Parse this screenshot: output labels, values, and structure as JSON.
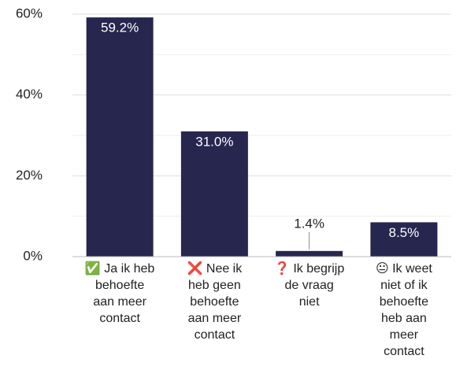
{
  "chart_data": {
    "type": "bar",
    "categories": [
      "✅ Ja ik heb behoefte aan meer contact",
      "❌ Nee ik heb geen behoefte aan meer contact",
      "❓ Ik begrijp de vraag niet",
      "😐 Ik weet niet of ik behoefte heb aan meer contact"
    ],
    "values": [
      59.2,
      31.0,
      1.4,
      8.5
    ],
    "value_labels": [
      "59.2%",
      "31.0%",
      "1.4%",
      "8.5%"
    ],
    "color": "#27264f",
    "ylim": [
      0,
      60
    ],
    "yticks": [
      {
        "value": 0,
        "label": "0%"
      },
      {
        "value": 20,
        "label": "20%"
      },
      {
        "value": 40,
        "label": "40%"
      },
      {
        "value": 60,
        "label": "60%"
      }
    ],
    "minor_yticks": [
      10,
      30,
      50
    ],
    "grid": true
  }
}
